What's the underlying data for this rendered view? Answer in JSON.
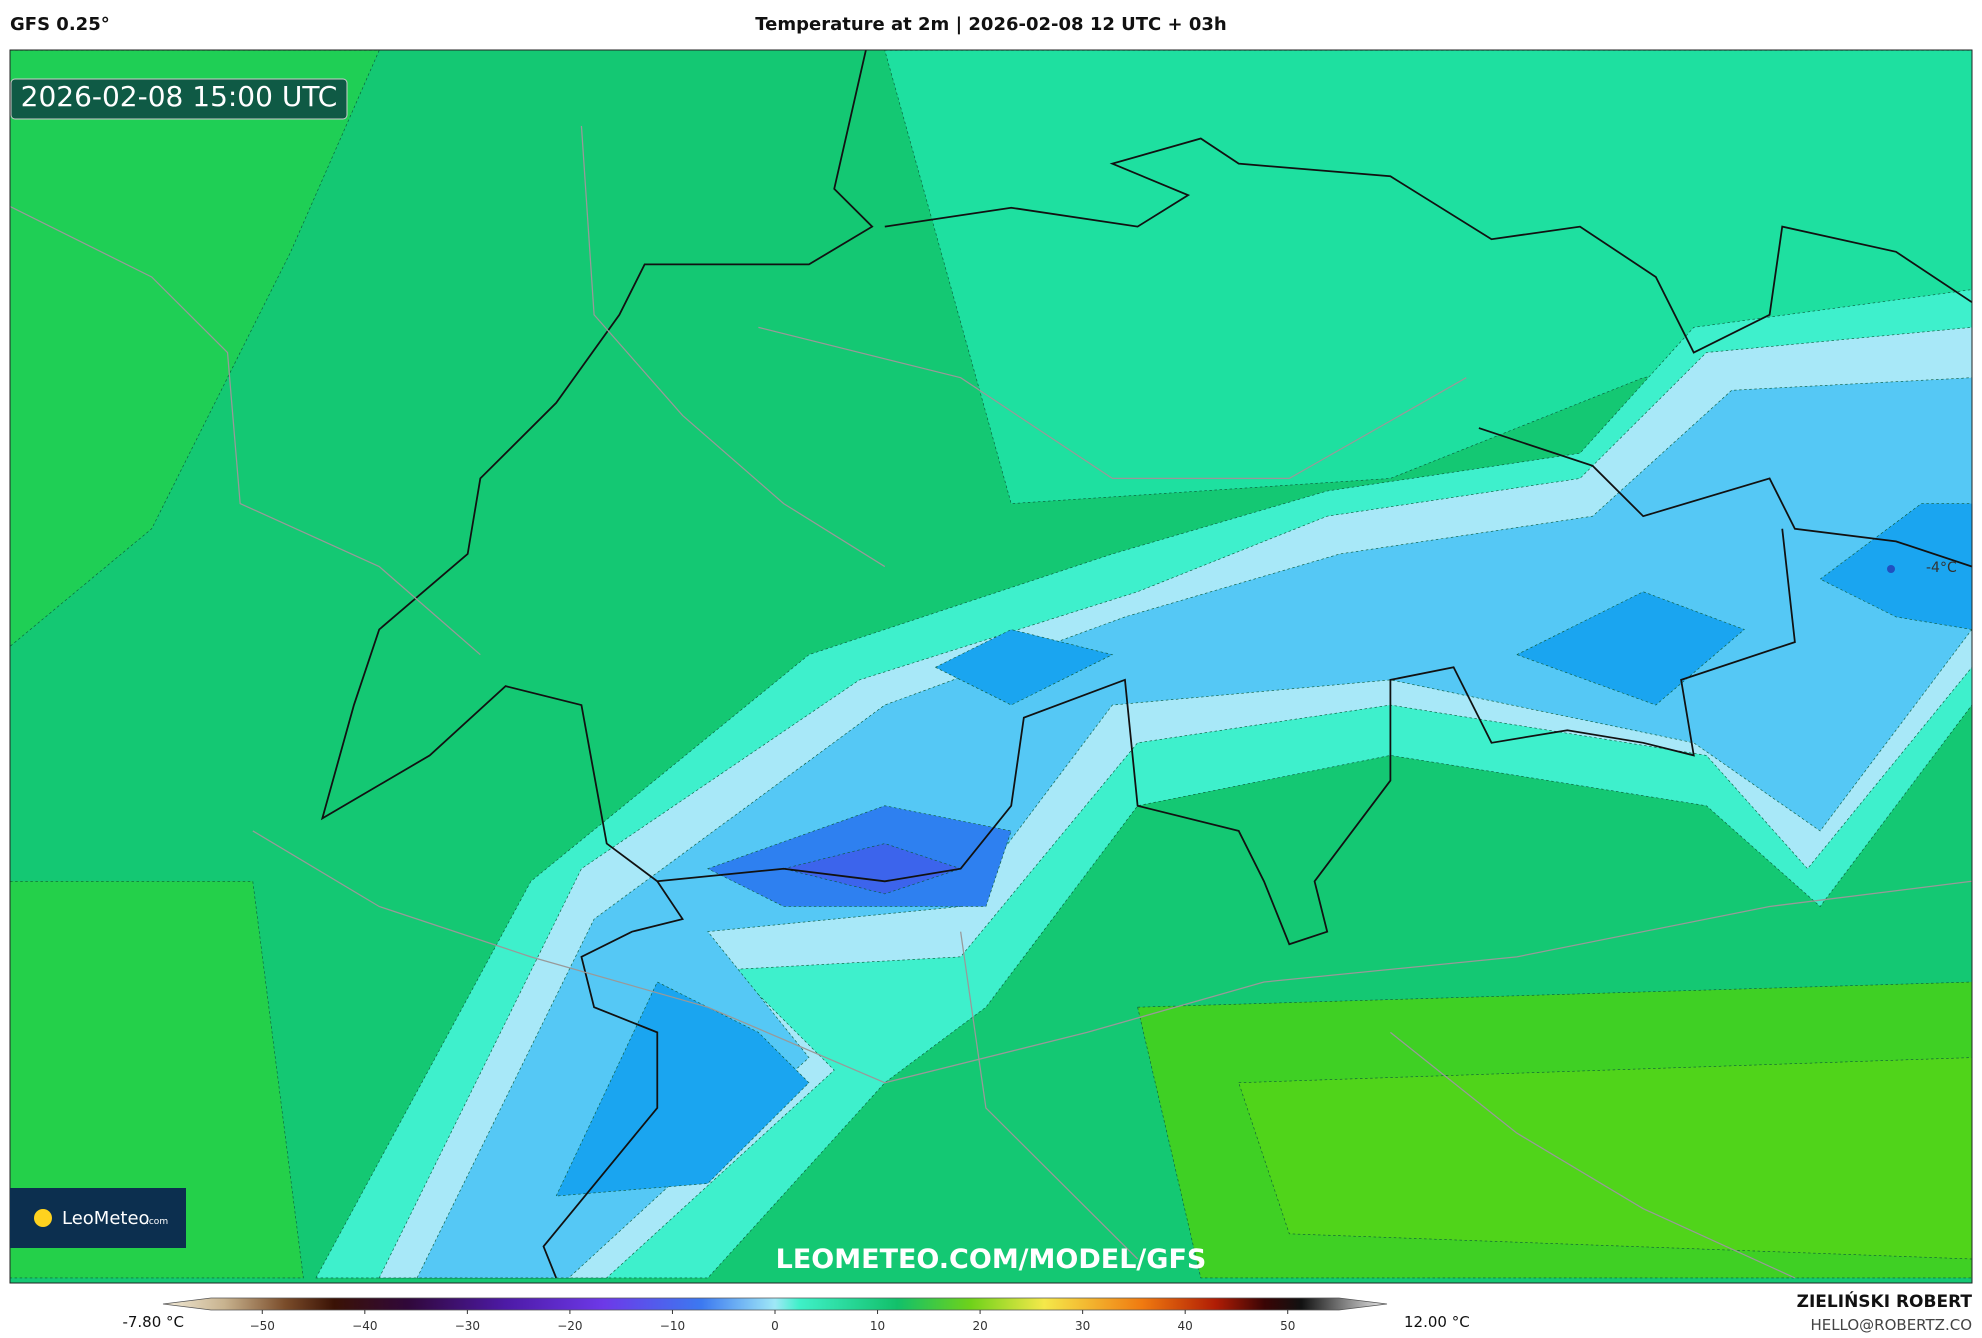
{
  "header": {
    "model": "GFS 0.25°",
    "title": "Temperature at 2m | 2026-02-08 12 UTC + 03h"
  },
  "map": {
    "timestamp": "2026-02-08 15:00 UTC",
    "point_label": "-4°C",
    "watermark": "LEOMETEO.COM/MODEL/GFS",
    "logo": {
      "name": "LeoMeteo",
      "suffix": ".com"
    }
  },
  "legend": {
    "min_label": "-7.80 °C",
    "max_label": "12.00 °C",
    "range": [
      -55,
      55
    ],
    "ticks": [
      {
        "value": -50,
        "label": "−50"
      },
      {
        "value": -40,
        "label": "−40"
      },
      {
        "value": -30,
        "label": "−30"
      },
      {
        "value": -20,
        "label": "−20"
      },
      {
        "value": -10,
        "label": "−10"
      },
      0,
      10,
      20,
      30,
      40,
      50
    ]
  },
  "footer": {
    "author": "ZIELIŃSKI ROBERT",
    "contact": "HELLO@ROBERTZ.CO"
  }
}
